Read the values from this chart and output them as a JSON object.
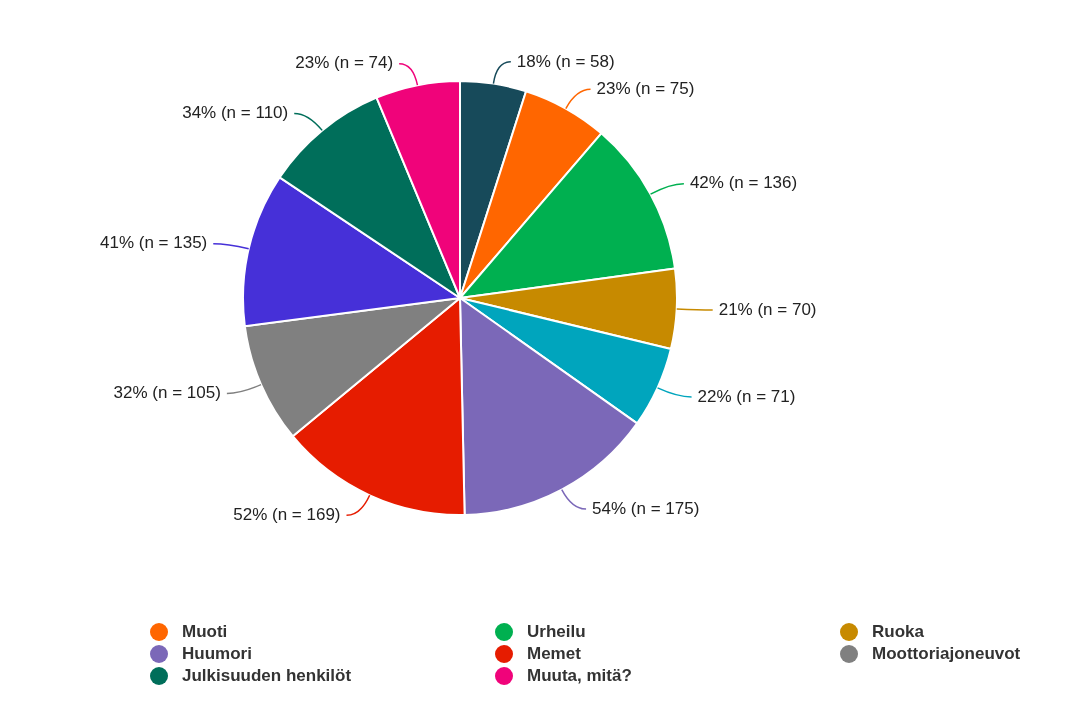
{
  "chart_data": {
    "type": "pie",
    "categories": [
      null,
      "Muoti",
      "Urheilu",
      "Ruoka",
      null,
      "Huumori",
      "Memet",
      "Moottoriajoneuvot",
      null,
      "Julkisuuden henkilöt",
      "Muuta, mitä?"
    ],
    "values": [
      58,
      75,
      136,
      70,
      71,
      175,
      169,
      105,
      135,
      110,
      74
    ],
    "value_labels": [
      "18% (n = 58)",
      "23% (n = 75)",
      "42% (n = 136)",
      "21% (n = 70)",
      "22% (n = 71)",
      "54% (n = 175)",
      "52% (n = 169)",
      "32% (n = 105)",
      "41% (n = 135)",
      "34% (n = 110)",
      "23% (n = 74)"
    ],
    "colors": [
      "#174a5a",
      "#ff6600",
      "#00b050",
      "#c78a00",
      "#00a5bd",
      "#7b68b8",
      "#e61c00",
      "#808080",
      "#4630d8",
      "#006e5a",
      "#f0037a"
    ],
    "legend": "bottom"
  }
}
